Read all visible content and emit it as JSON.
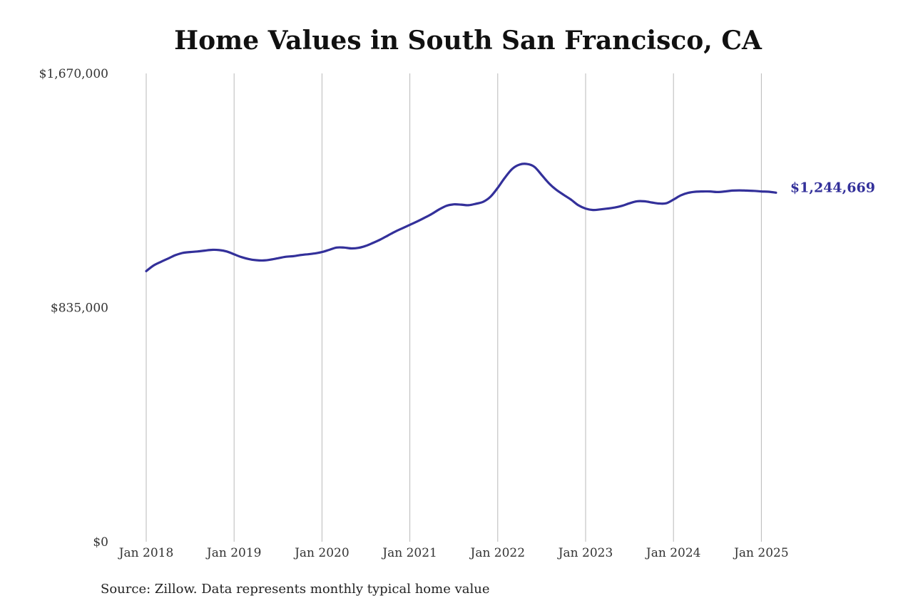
{
  "chart_data": {
    "type": "line",
    "title": "Home Values in South San Francisco, CA",
    "source": "Source: Zillow. Data represents monthly typical home value",
    "ylim": [
      0,
      1670000
    ],
    "y_ticks": [
      {
        "value": 0,
        "label": "$0"
      },
      {
        "value": 835000,
        "label": "$835,000"
      },
      {
        "value": 1670000,
        "label": "$1,670,000"
      }
    ],
    "x_ticks": [
      {
        "date": "2018-01",
        "label": "Jan 2018"
      },
      {
        "date": "2019-01",
        "label": "Jan 2019"
      },
      {
        "date": "2020-01",
        "label": "Jan 2020"
      },
      {
        "date": "2021-01",
        "label": "Jan 2021"
      },
      {
        "date": "2022-01",
        "label": "Jan 2022"
      },
      {
        "date": "2023-01",
        "label": "Jan 2023"
      },
      {
        "date": "2024-01",
        "label": "Jan 2024"
      },
      {
        "date": "2025-01",
        "label": "Jan 2025"
      }
    ],
    "grid": "vertical",
    "series": [
      {
        "color": "#33309a",
        "end_label": "$1,244,669",
        "points": [
          [
            "2018-01",
            965000
          ],
          [
            "2018-02",
            985000
          ],
          [
            "2018-03",
            998000
          ],
          [
            "2018-04",
            1010000
          ],
          [
            "2018-05",
            1022000
          ],
          [
            "2018-06",
            1030000
          ],
          [
            "2018-07",
            1033000
          ],
          [
            "2018-08",
            1035000
          ],
          [
            "2018-09",
            1038000
          ],
          [
            "2018-10",
            1041000
          ],
          [
            "2018-11",
            1040000
          ],
          [
            "2018-12",
            1035000
          ],
          [
            "2019-01",
            1025000
          ],
          [
            "2019-02",
            1015000
          ],
          [
            "2019-03",
            1008000
          ],
          [
            "2019-04",
            1004000
          ],
          [
            "2019-05",
            1003000
          ],
          [
            "2019-06",
            1006000
          ],
          [
            "2019-07",
            1011000
          ],
          [
            "2019-08",
            1016000
          ],
          [
            "2019-09",
            1018000
          ],
          [
            "2019-10",
            1022000
          ],
          [
            "2019-11",
            1025000
          ],
          [
            "2019-12",
            1028000
          ],
          [
            "2020-01",
            1033000
          ],
          [
            "2020-02",
            1041000
          ],
          [
            "2020-03",
            1049000
          ],
          [
            "2020-04",
            1049000
          ],
          [
            "2020-05",
            1046000
          ],
          [
            "2020-06",
            1048000
          ],
          [
            "2020-07",
            1055000
          ],
          [
            "2020-08",
            1066000
          ],
          [
            "2020-09",
            1078000
          ],
          [
            "2020-10",
            1092000
          ],
          [
            "2020-11",
            1106000
          ],
          [
            "2020-12",
            1118000
          ],
          [
            "2021-01",
            1130000
          ],
          [
            "2021-02",
            1142000
          ],
          [
            "2021-03",
            1155000
          ],
          [
            "2021-04",
            1169000
          ],
          [
            "2021-05",
            1185000
          ],
          [
            "2021-06",
            1198000
          ],
          [
            "2021-07",
            1203000
          ],
          [
            "2021-08",
            1202000
          ],
          [
            "2021-09",
            1200000
          ],
          [
            "2021-10",
            1205000
          ],
          [
            "2021-11",
            1212000
          ],
          [
            "2021-12",
            1230000
          ],
          [
            "2022-01",
            1262000
          ],
          [
            "2022-02",
            1299000
          ],
          [
            "2022-03",
            1330000
          ],
          [
            "2022-04",
            1345000
          ],
          [
            "2022-05",
            1347000
          ],
          [
            "2022-06",
            1337000
          ],
          [
            "2022-07",
            1308000
          ],
          [
            "2022-08",
            1278000
          ],
          [
            "2022-09",
            1255000
          ],
          [
            "2022-10",
            1237000
          ],
          [
            "2022-11",
            1220000
          ],
          [
            "2022-12",
            1200000
          ],
          [
            "2023-01",
            1188000
          ],
          [
            "2023-02",
            1183000
          ],
          [
            "2023-03",
            1185000
          ],
          [
            "2023-04",
            1188000
          ],
          [
            "2023-05",
            1192000
          ],
          [
            "2023-06",
            1198000
          ],
          [
            "2023-07",
            1207000
          ],
          [
            "2023-08",
            1214000
          ],
          [
            "2023-09",
            1214000
          ],
          [
            "2023-10",
            1210000
          ],
          [
            "2023-11",
            1206000
          ],
          [
            "2023-12",
            1207000
          ],
          [
            "2024-01",
            1220000
          ],
          [
            "2024-02",
            1235000
          ],
          [
            "2024-03",
            1244000
          ],
          [
            "2024-04",
            1248000
          ],
          [
            "2024-05",
            1249000
          ],
          [
            "2024-06",
            1249000
          ],
          [
            "2024-07",
            1247000
          ],
          [
            "2024-08",
            1249000
          ],
          [
            "2024-09",
            1252000
          ],
          [
            "2024-10",
            1253000
          ],
          [
            "2024-11",
            1252000
          ],
          [
            "2024-12",
            1251000
          ],
          [
            "2025-01",
            1249000
          ],
          [
            "2025-02",
            1248000
          ],
          [
            "2025-03",
            1244669
          ]
        ]
      }
    ]
  }
}
